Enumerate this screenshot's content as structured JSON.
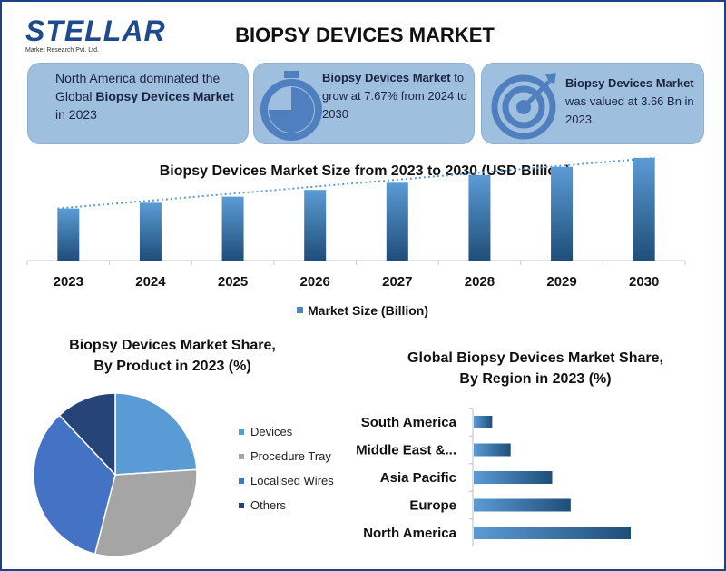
{
  "logo": {
    "name": "STELLAR",
    "tagline": "Market Research Pvt. Ltd."
  },
  "page_title": "BIOPSY DEVICES MARKET",
  "cards": [
    {
      "pre": "North America dominated the Global ",
      "bold": "Biopsy Devices Market",
      "post": " in 2023",
      "icon": "none"
    },
    {
      "pre": "",
      "bold": "Biopsy Devices Market",
      "post": " to grow at 7.67% from 2024 to 2030",
      "icon": "stopwatch-icon"
    },
    {
      "pre": "",
      "bold": "Biopsy Devices Market",
      "post": " was valued at 3.66 Bn in 2023.",
      "icon": "target-icon"
    }
  ],
  "colors": {
    "bar_light": "#5b9bd5",
    "bar_dark": "#1f4e79",
    "pie_devices": "#5b9bd5",
    "pie_tray": "#a5a5a5",
    "pie_wires": "#4472c4",
    "pie_others": "#264478",
    "border": "#1f3f86",
    "card_bg": "#9fbfdf"
  },
  "chart_data": [
    {
      "type": "bar",
      "title": "Biopsy Devices Market Size from 2023 to 2030 (USD Billion)",
      "categories": [
        "2023",
        "2024",
        "2025",
        "2026",
        "2027",
        "2028",
        "2029",
        "2030"
      ],
      "series": [
        {
          "name": "Market Size (Billion)",
          "values": [
            3.66,
            3.94,
            4.24,
            4.57,
            4.92,
            5.3,
            5.7,
            6.14
          ]
        }
      ],
      "trendline": "dotted linear",
      "ylim": [
        0,
        8
      ],
      "legend": "bottom"
    },
    {
      "type": "pie",
      "title": "Biopsy Devices Market Share, By Product in 2023 (%)",
      "labels": [
        "Devices",
        "Procedure Tray",
        "Localised Wires",
        "Others"
      ],
      "values": [
        24,
        30,
        34,
        12
      ],
      "legend": "right"
    },
    {
      "type": "bar",
      "orientation": "horizontal",
      "title": "Global Biopsy Devices Market Share, By Region in 2023 (%)",
      "categories": [
        "South America",
        "Middle East &...",
        "Asia Pacific",
        "Europe",
        "North America"
      ],
      "values": [
        4,
        8,
        17,
        21,
        34
      ]
    }
  ]
}
